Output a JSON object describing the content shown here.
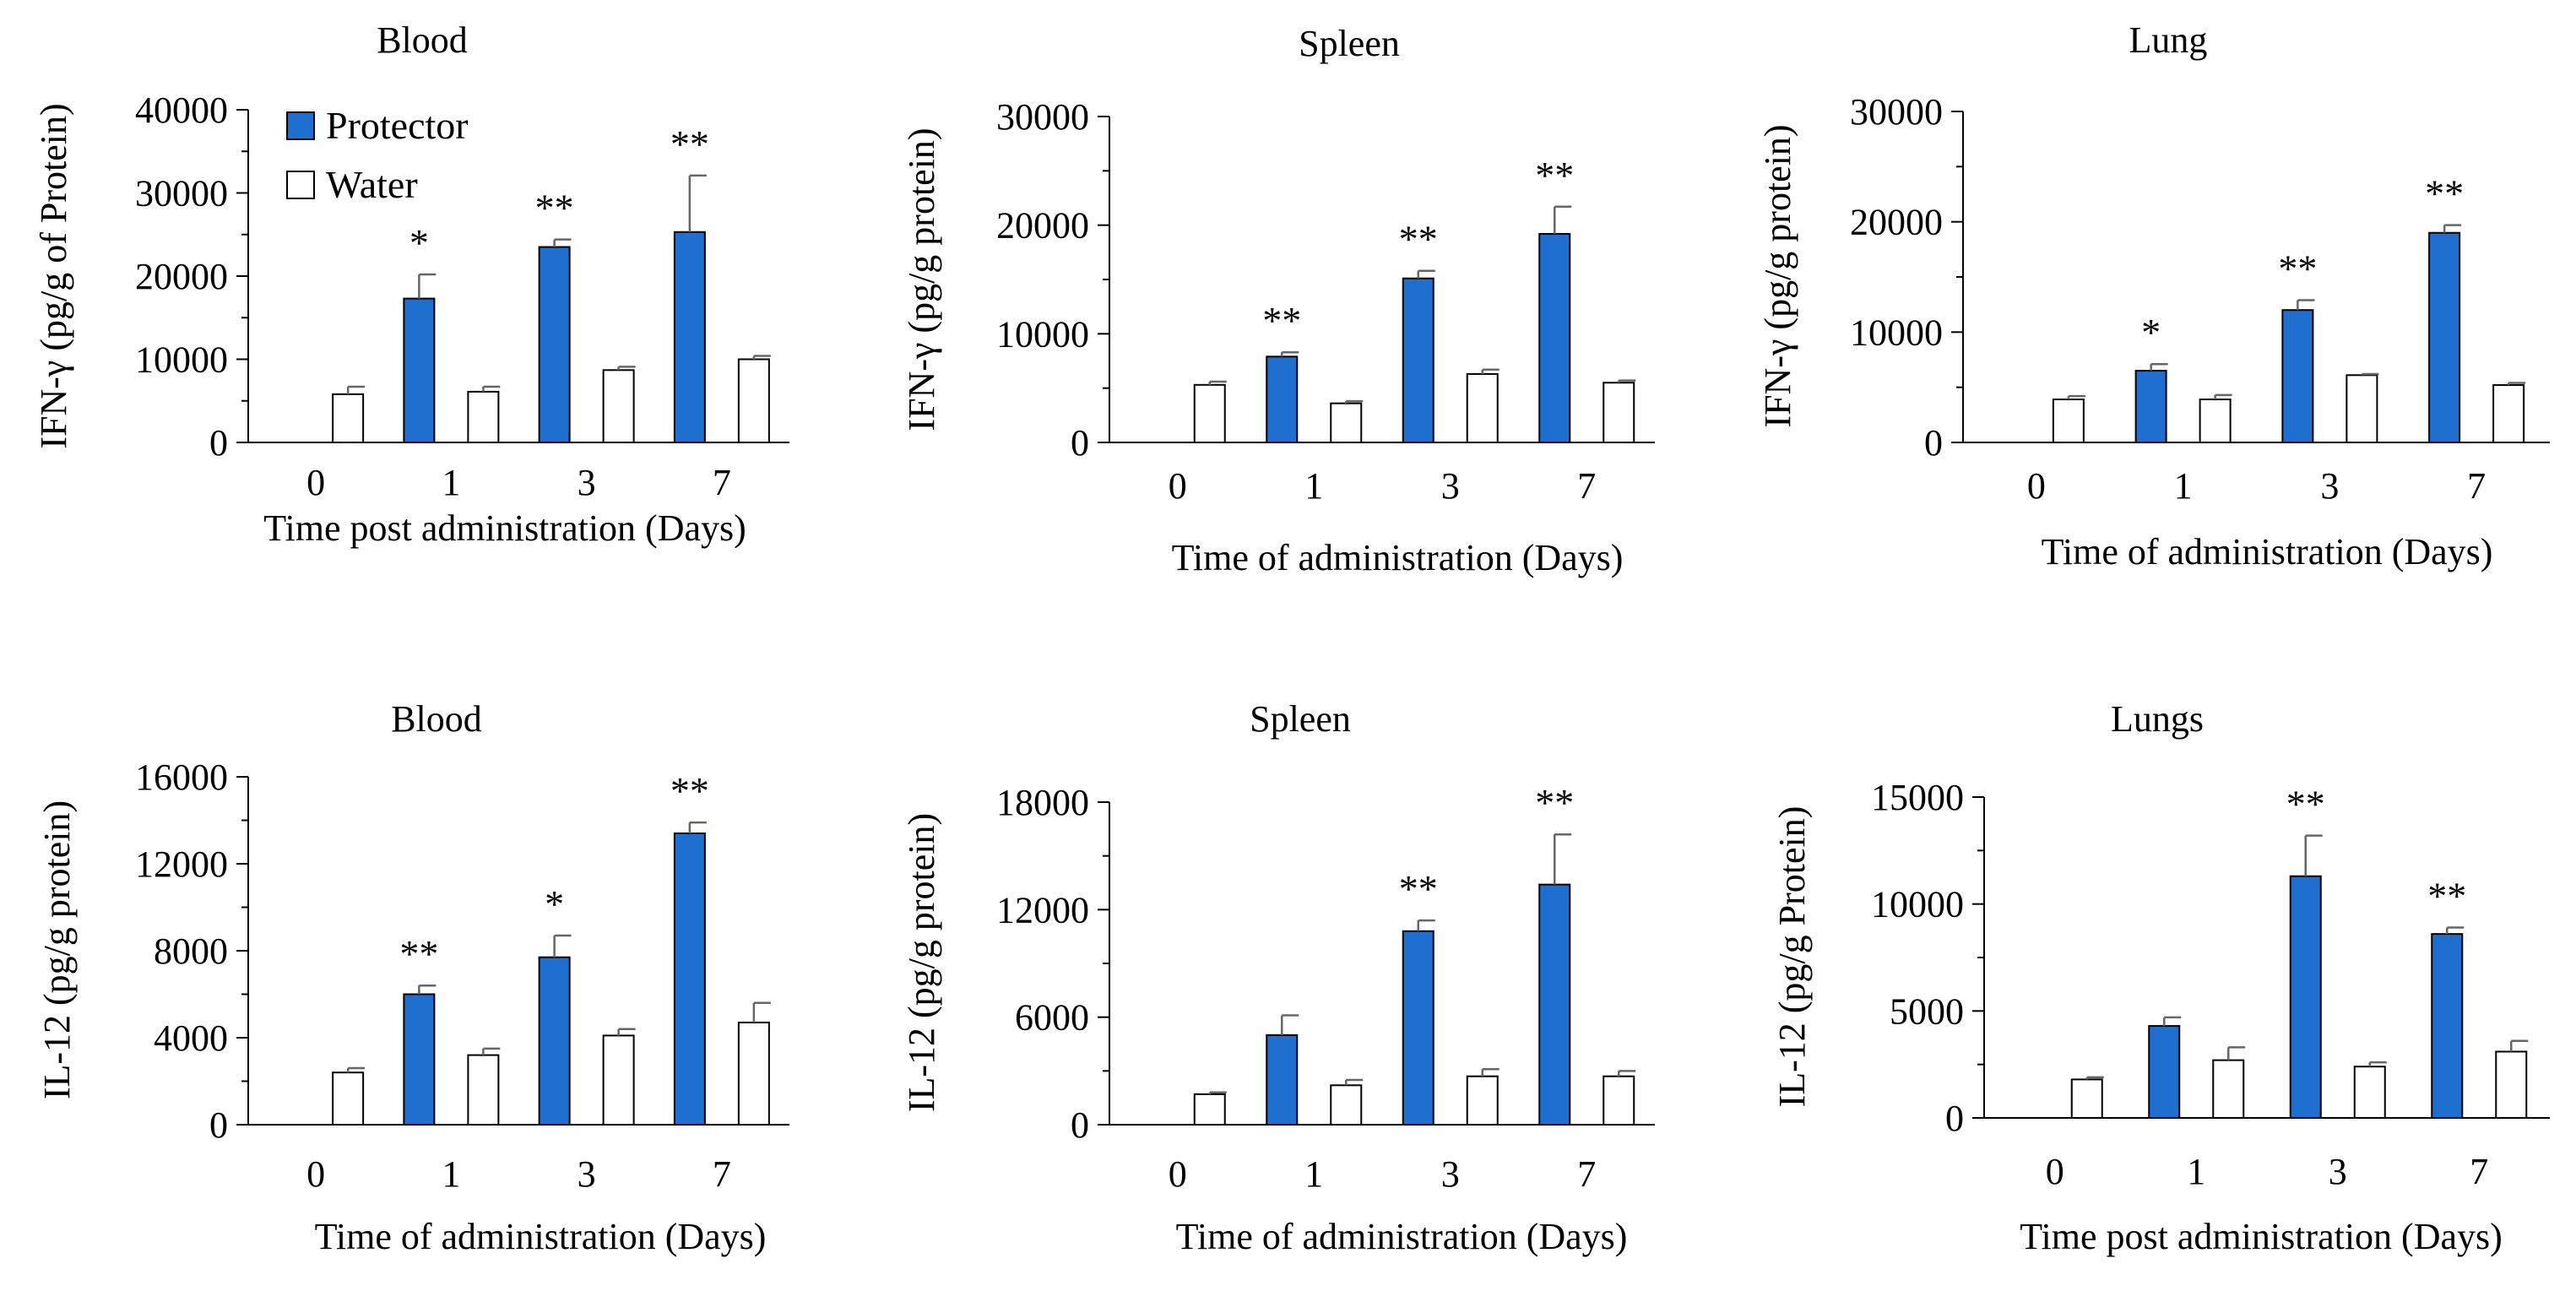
{
  "colors": {
    "protector": "#1f6fd1",
    "water": "#ffffff",
    "axis": "#000000",
    "error": "#666666"
  },
  "legend": {
    "protector": "Protector",
    "water": "Water"
  },
  "chart_data": [
    {
      "type": "bar",
      "title": "Blood",
      "ylabel": "IFN-γ (pg/g of Protein)",
      "xlabel": "Time post administration (Days)",
      "categories": [
        "0",
        "1",
        "3",
        "7"
      ],
      "ylim": [
        0,
        40000
      ],
      "yticks": [
        0,
        10000,
        20000,
        30000,
        40000
      ],
      "ytick_labels": [
        "0",
        "10000",
        "20000",
        "30000",
        "40000"
      ],
      "legend_position": "top-left",
      "series": [
        {
          "name": "Protector",
          "values": [
            0,
            17300,
            23500,
            25300
          ],
          "errors": [
            0,
            2900,
            900,
            6800
          ]
        },
        {
          "name": "Water",
          "values": [
            5800,
            6100,
            8700,
            10000
          ],
          "errors": [
            900,
            600,
            400,
            400
          ]
        }
      ],
      "annotations": [
        "",
        "*",
        "**",
        "**"
      ]
    },
    {
      "type": "bar",
      "title": "Spleen",
      "ylabel": "IFN-γ (pg/g protein)",
      "xlabel": "Time of administration (Days)",
      "categories": [
        "0",
        "1",
        "3",
        "7"
      ],
      "ylim": [
        0,
        30000
      ],
      "yticks": [
        0,
        10000,
        20000,
        30000
      ],
      "ytick_labels": [
        "0",
        "10000",
        "20000",
        "30000"
      ],
      "series": [
        {
          "name": "Protector",
          "values": [
            0,
            7900,
            15100,
            19200
          ],
          "errors": [
            0,
            400,
            700,
            2500
          ]
        },
        {
          "name": "Water",
          "values": [
            5300,
            3600,
            6300,
            5500
          ],
          "errors": [
            300,
            200,
            400,
            200
          ]
        }
      ],
      "annotations": [
        "",
        "**",
        "**",
        "**"
      ]
    },
    {
      "type": "bar",
      "title": "Lung",
      "ylabel": "IFN-γ (pg/g protein)",
      "xlabel": "Time of administration (Days)",
      "categories": [
        "0",
        "1",
        "3",
        "7"
      ],
      "ylim": [
        0,
        30000
      ],
      "yticks": [
        0,
        10000,
        20000,
        30000
      ],
      "ytick_labels": [
        "0",
        "10000",
        "20000",
        "30000"
      ],
      "series": [
        {
          "name": "Protector",
          "values": [
            0,
            6500,
            12000,
            19000
          ],
          "errors": [
            0,
            600,
            900,
            700
          ]
        },
        {
          "name": "Water",
          "values": [
            3900,
            3900,
            6100,
            5200
          ],
          "errors": [
            300,
            400,
            100,
            200
          ]
        }
      ],
      "annotations": [
        "",
        "*",
        "**",
        "**"
      ]
    },
    {
      "type": "bar",
      "title": "Blood",
      "ylabel": "IL-12 (pg/g protein)",
      "xlabel": "Time of administration (Days)",
      "categories": [
        "0",
        "1",
        "3",
        "7"
      ],
      "ylim": [
        0,
        16000
      ],
      "yticks": [
        0,
        4000,
        8000,
        12000,
        16000
      ],
      "ytick_labels": [
        "0",
        "4000",
        "8000",
        "12000",
        "16000"
      ],
      "series": [
        {
          "name": "Protector",
          "values": [
            0,
            6000,
            7700,
            13400
          ],
          "errors": [
            0,
            400,
            1000,
            500
          ]
        },
        {
          "name": "Water",
          "values": [
            2400,
            3200,
            4100,
            4700
          ],
          "errors": [
            200,
            300,
            300,
            900
          ]
        }
      ],
      "annotations": [
        "",
        "**",
        "*",
        "**"
      ]
    },
    {
      "type": "bar",
      "title": "Spleen",
      "ylabel": "IL-12 (pg/g protein)",
      "xlabel": "Time of administration (Days)",
      "categories": [
        "0",
        "1",
        "3",
        "7"
      ],
      "ylim": [
        0,
        18000
      ],
      "yticks": [
        0,
        6000,
        12000,
        18000
      ],
      "ytick_labels": [
        "0",
        "6000",
        "12000",
        "18000"
      ],
      "series": [
        {
          "name": "Protector",
          "values": [
            0,
            5000,
            10800,
            13400
          ],
          "errors": [
            0,
            1100,
            600,
            2800
          ]
        },
        {
          "name": "Water",
          "values": [
            1700,
            2200,
            2700,
            2700
          ],
          "errors": [
            100,
            300,
            400,
            300
          ]
        }
      ],
      "annotations": [
        "",
        "",
        "**",
        "**"
      ]
    },
    {
      "type": "bar",
      "title": "Lungs",
      "ylabel": "IL-12 (pg/g Protein)",
      "xlabel": "Time post administration (Days)",
      "categories": [
        "0",
        "1",
        "3",
        "7"
      ],
      "ylim": [
        0,
        15000
      ],
      "yticks": [
        0,
        5000,
        10000,
        15000
      ],
      "ytick_labels": [
        "0",
        "5000",
        "10000",
        "15000"
      ],
      "series": [
        {
          "name": "Protector",
          "values": [
            0,
            4300,
            11300,
            8600
          ],
          "errors": [
            0,
            400,
            1900,
            300
          ]
        },
        {
          "name": "Water",
          "values": [
            1800,
            2700,
            2400,
            3100
          ],
          "errors": [
            100,
            600,
            200,
            500
          ]
        }
      ],
      "annotations": [
        "",
        "",
        "**",
        "**"
      ]
    }
  ]
}
